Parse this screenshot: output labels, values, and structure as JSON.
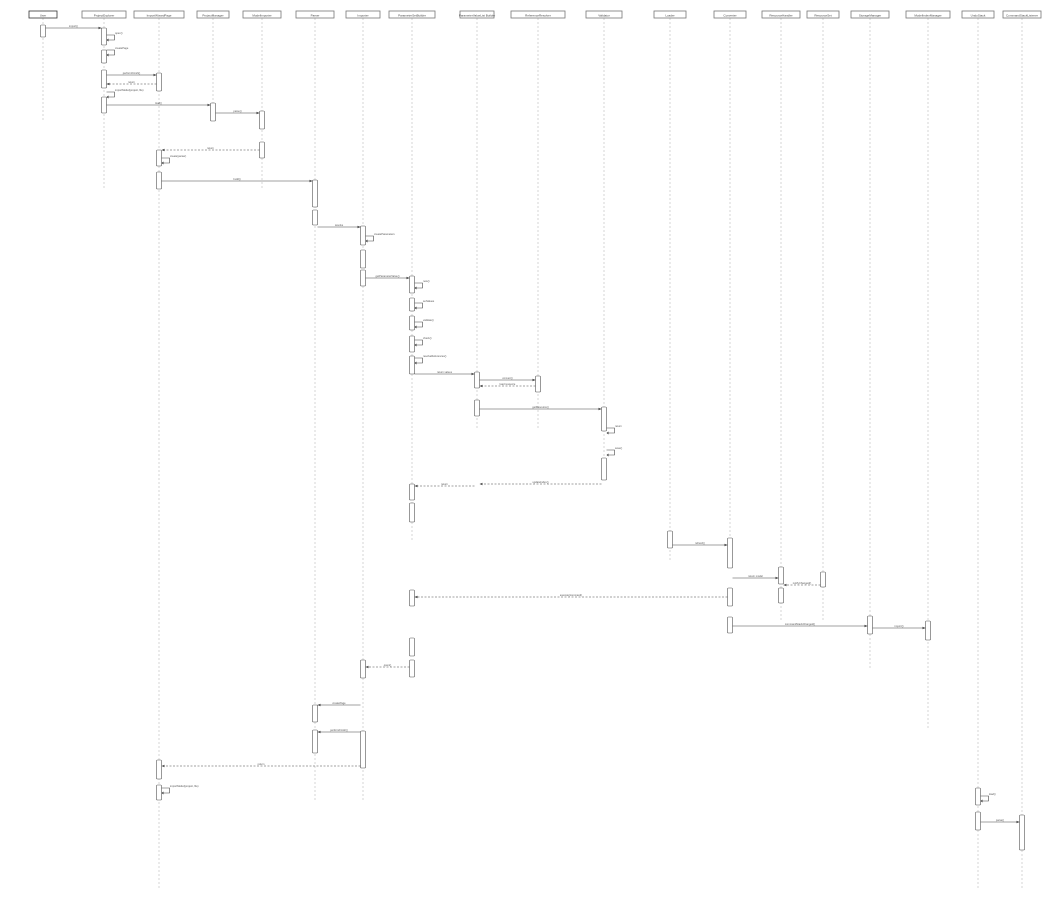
{
  "diagram": {
    "type": "sequence",
    "participants": [
      "User",
      "ProjectExplorer",
      "ImportWizardPage",
      "ProjectManager",
      "ModelImporter",
      "Parser",
      "Importer",
      "ParameterSetBuilder",
      "ParameterValueList Builder",
      "ReferenceResolver",
      "Validator",
      "Loader",
      "Converter",
      "ResourceHandler",
      "ResourceSet",
      "StorageManager",
      "ModelIndexManager",
      "UndoStack",
      "CommandStackListener"
    ],
    "messages": [
      "import()",
      "open()",
      "createPage",
      "performFinish()",
      "return",
      "importModel(project, file)",
      "load()",
      "parse()",
      "return",
      "create(parser)",
      "build()",
      "resolve",
      "createParameters",
      "getParameterValue()",
      "new()",
      "setValues",
      "validate()",
      "check()",
      "resolveReferences()",
      "return values",
      "convert()",
      "load resource",
      "getResource()",
      "return",
      "save()",
      "updateIndex()",
      "return",
      "refresh()",
      "return model",
      "notifyChanged()",
      "execute(command)",
      "commandStackChanged()"
    ]
  }
}
